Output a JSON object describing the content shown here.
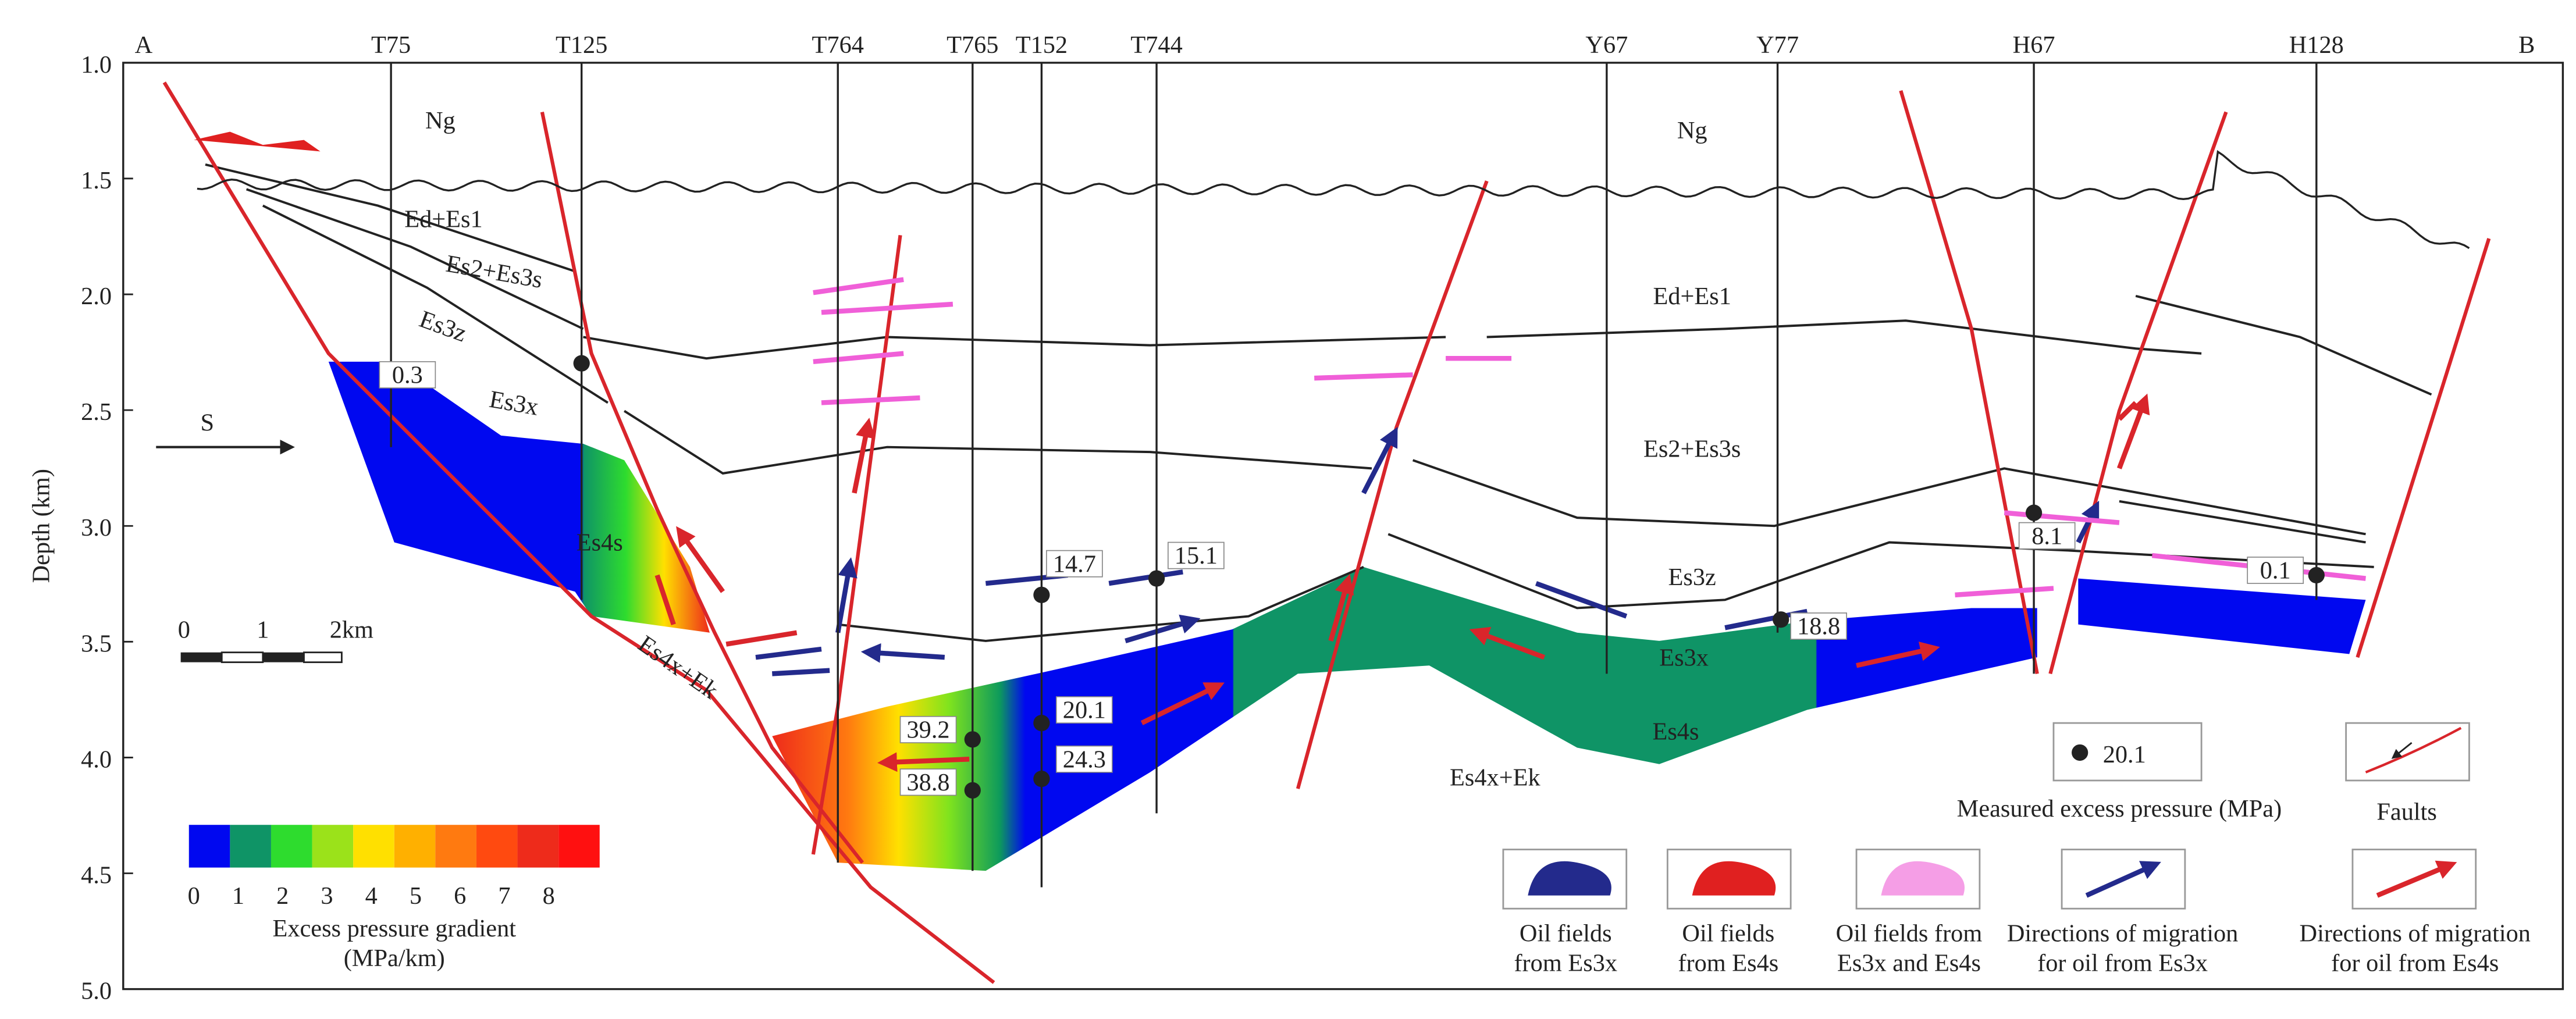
{
  "section": {
    "start_label": "A",
    "end_label": "B",
    "direction_label": "S"
  },
  "axis": {
    "title": "Depth (km)",
    "ticks": [
      "1.0",
      "1.5",
      "2.0",
      "2.5",
      "3.0",
      "3.5",
      "4.0",
      "4.5",
      "5.0"
    ]
  },
  "wells": [
    "T75",
    "T125",
    "T764",
    "T765",
    "T152",
    "T744",
    "Y67",
    "Y77",
    "H67",
    "H128"
  ],
  "formations": [
    "Ng",
    "Ng",
    "Ed+Es1",
    "Es2+Es3s",
    "Es3z",
    "Es3x",
    "Es4s",
    "Es4x+Ek",
    "Ed+Es1",
    "Es2+Es3s",
    "Es3z",
    "Es3x",
    "Es4s",
    "Es4x+Ek"
  ],
  "pressures": [
    "0.3",
    "14.7",
    "15.1",
    "39.2",
    "20.1",
    "38.8",
    "24.3",
    "18.8",
    "8.1",
    "0.1"
  ],
  "scale_bar": {
    "ticks": [
      "0",
      "1",
      "2km"
    ]
  },
  "color_scale": {
    "ticks": [
      "0",
      "1",
      "2",
      "3",
      "4",
      "5",
      "6",
      "7",
      "8"
    ],
    "title": "Excess pressure gradient",
    "unit": "(MPa/km)"
  },
  "legend": {
    "pressure_sample": "20.1",
    "pressure_label": "Measured excess pressure (MPa)",
    "faults_label": "Faults",
    "items": [
      [
        "Oil fields",
        "from Es3x"
      ],
      [
        "Oil fields",
        "from Es4s"
      ],
      [
        "Oil fields from",
        "Es3x and Es4s"
      ],
      [
        "Directions of migration",
        "for oil from Es3x"
      ],
      [
        "Directions of migration",
        "for oil from Es4s"
      ]
    ]
  }
}
